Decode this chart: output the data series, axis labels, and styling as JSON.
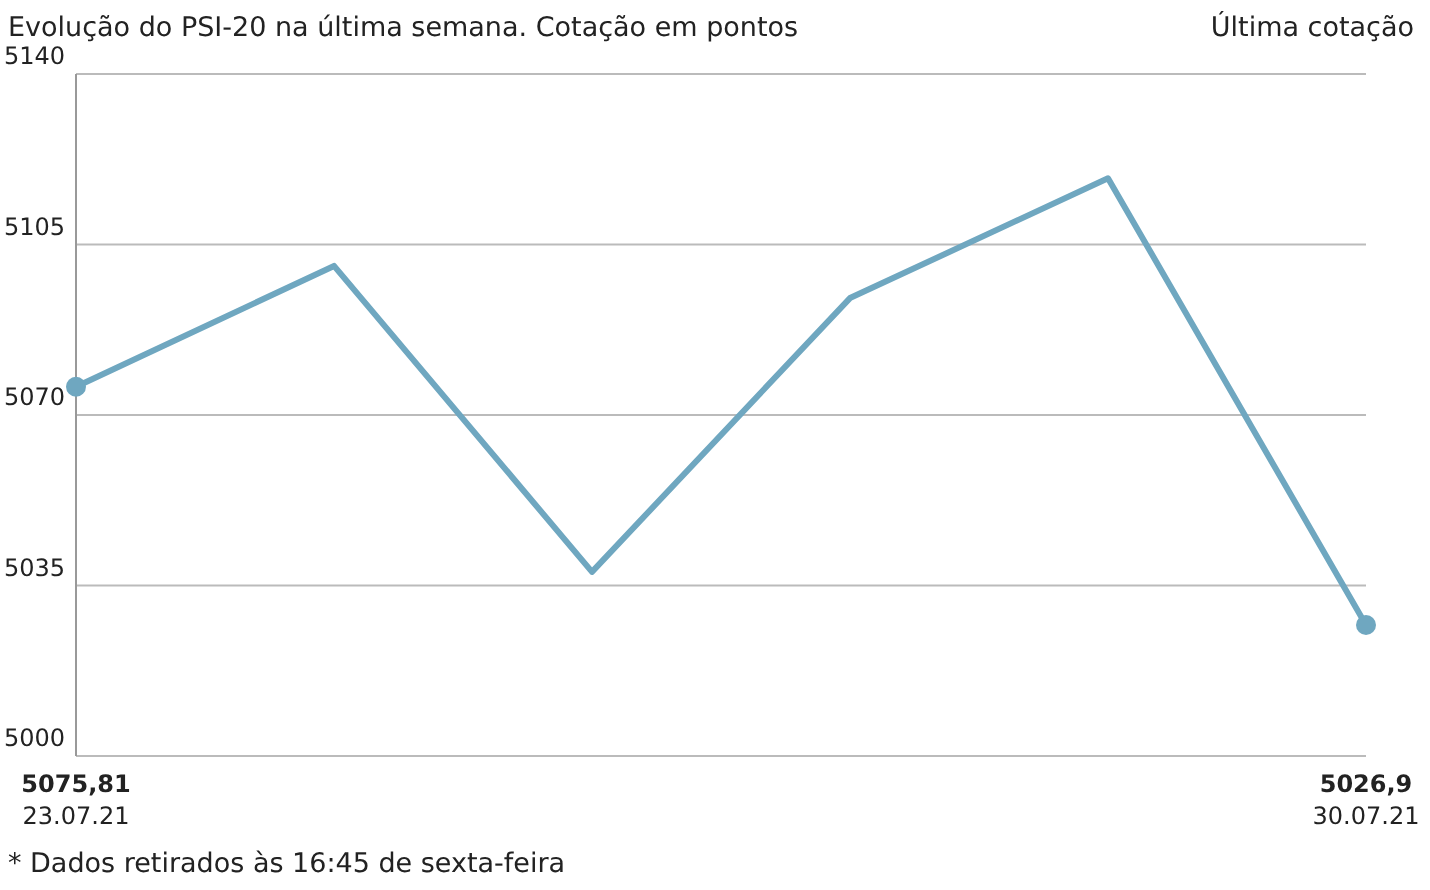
{
  "chart_data": {
    "type": "line",
    "title": "Evolução do PSI-20 na última semana. Cotação em pontos",
    "annotations": [
      "Última cotação",
      "* Dados retirados às 16:45 de sexta-feira"
    ],
    "categories": [
      "23.07.21",
      null,
      null,
      null,
      null,
      "30.07.21"
    ],
    "series": [
      {
        "color": "#6fa7c0",
        "marker": "none",
        "values": [
          5075.81,
          5100.6,
          5037.8,
          5094,
          5118.6,
          5026.9
        ],
        "value_labels": [
          "5075,81",
          null,
          null,
          null,
          null,
          "5026,9"
        ]
      },
      {
        "type": "scatter",
        "marker": "circle",
        "color": "#6fa7c0",
        "values": [
          5075.81,
          null,
          null,
          null,
          null,
          5026.9
        ]
      }
    ],
    "ylim": [
      5000,
      5140
    ],
    "yticks": [
      5000,
      5035,
      5070,
      5105,
      5140
    ],
    "grid": "y",
    "line_style": "solid"
  }
}
